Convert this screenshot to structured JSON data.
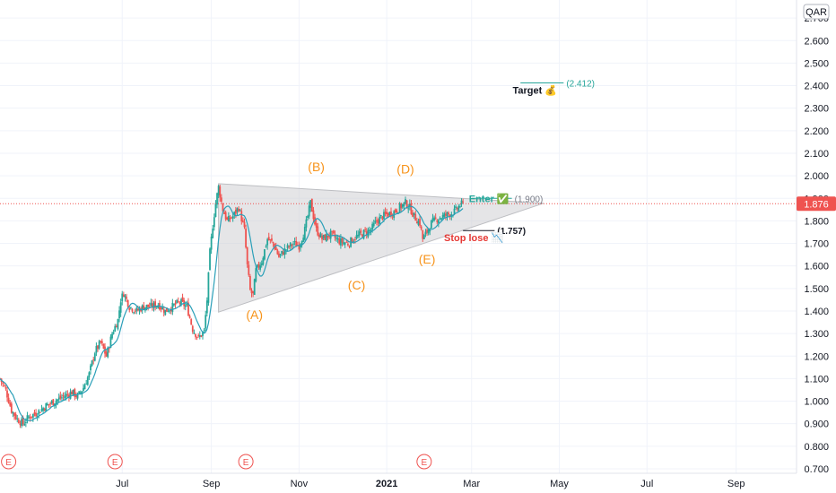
{
  "chart_data": {
    "type": "candlestick",
    "currency": "QAR",
    "last_price_label": "1.876",
    "colors": {
      "up": "#26a69a",
      "down": "#ef5350",
      "ma": "#2a9fb8",
      "pattern": "#cfd0d4",
      "wave_label": "#f7931a",
      "target": "#26a69a",
      "stop": "#e53935"
    },
    "y_ticks": [
      "0.700",
      "0.800",
      "0.900",
      "1.000",
      "1.100",
      "1.200",
      "1.300",
      "1.400",
      "1.500",
      "1.600",
      "1.700",
      "1.800",
      "1.900",
      "2.000",
      "2.100",
      "2.200",
      "2.300",
      "2.400",
      "2.500",
      "2.600",
      "2.700"
    ],
    "y_range": [
      0.68,
      2.78
    ],
    "x_ticks": [
      {
        "label": "Jul",
        "day": 85
      },
      {
        "label": "Sep",
        "day": 147
      },
      {
        "label": "Nov",
        "day": 208
      },
      {
        "label": "2021",
        "day": 269
      },
      {
        "label": "Mar",
        "day": 328
      },
      {
        "label": "May",
        "day": 389
      },
      {
        "label": "Jul",
        "day": 450
      },
      {
        "label": "Sep",
        "day": 512
      }
    ],
    "x_range": [
      0,
      554
    ],
    "earnings_days": [
      6,
      80,
      171,
      295
    ],
    "earnings_symbol": "E",
    "closes_knots": [
      [
        0,
        1.1
      ],
      [
        4,
        1.05
      ],
      [
        8,
        0.96
      ],
      [
        12,
        0.92
      ],
      [
        16,
        0.9
      ],
      [
        20,
        0.93
      ],
      [
        26,
        0.95
      ],
      [
        32,
        0.98
      ],
      [
        38,
        1.0
      ],
      [
        44,
        1.02
      ],
      [
        50,
        1.04
      ],
      [
        54,
        1.02
      ],
      [
        58,
        1.06
      ],
      [
        62,
        1.12
      ],
      [
        66,
        1.22
      ],
      [
        70,
        1.26
      ],
      [
        74,
        1.2
      ],
      [
        78,
        1.3
      ],
      [
        82,
        1.36
      ],
      [
        84,
        1.45
      ],
      [
        86,
        1.48
      ],
      [
        90,
        1.42
      ],
      [
        95,
        1.4
      ],
      [
        100,
        1.42
      ],
      [
        105,
        1.42
      ],
      [
        110,
        1.43
      ],
      [
        115,
        1.4
      ],
      [
        120,
        1.42
      ],
      [
        125,
        1.44
      ],
      [
        130,
        1.42
      ],
      [
        134,
        1.32
      ],
      [
        138,
        1.28
      ],
      [
        142,
        1.31
      ],
      [
        144,
        1.45
      ],
      [
        146,
        1.66
      ],
      [
        148,
        1.78
      ],
      [
        150,
        1.88
      ],
      [
        152,
        1.95
      ],
      [
        155,
        1.85
      ],
      [
        158,
        1.8
      ],
      [
        162,
        1.82
      ],
      [
        166,
        1.86
      ],
      [
        170,
        1.76
      ],
      [
        172,
        1.6
      ],
      [
        174,
        1.49
      ],
      [
        176,
        1.47
      ],
      [
        178,
        1.58
      ],
      [
        182,
        1.62
      ],
      [
        186,
        1.72
      ],
      [
        190,
        1.7
      ],
      [
        194,
        1.64
      ],
      [
        198,
        1.67
      ],
      [
        204,
        1.7
      ],
      [
        208,
        1.69
      ],
      [
        212,
        1.76
      ],
      [
        216,
        1.88
      ],
      [
        220,
        1.76
      ],
      [
        224,
        1.72
      ],
      [
        230,
        1.74
      ],
      [
        236,
        1.71
      ],
      [
        242,
        1.7
      ],
      [
        248,
        1.73
      ],
      [
        254,
        1.75
      ],
      [
        258,
        1.76
      ],
      [
        262,
        1.8
      ],
      [
        266,
        1.82
      ],
      [
        270,
        1.83
      ],
      [
        274,
        1.84
      ],
      [
        278,
        1.86
      ],
      [
        282,
        1.88
      ],
      [
        285,
        1.86
      ],
      [
        288,
        1.82
      ],
      [
        292,
        1.79
      ],
      [
        294,
        1.72
      ],
      [
        296,
        1.74
      ],
      [
        300,
        1.79
      ],
      [
        304,
        1.81
      ],
      [
        308,
        1.82
      ],
      [
        312,
        1.83
      ],
      [
        316,
        1.84
      ],
      [
        320,
        1.87
      ],
      [
        322,
        1.876
      ]
    ],
    "pattern_triangle": [
      {
        "day": 152,
        "value": 1.965
      },
      {
        "day": 152,
        "value": 1.395
      },
      {
        "day": 378,
        "value": 1.878
      }
    ],
    "wave_labels": [
      {
        "text": "(A)",
        "day": 177,
        "value": 1.365
      },
      {
        "text": "(B)",
        "day": 220,
        "value": 2.02
      },
      {
        "text": "(C)",
        "day": 248,
        "value": 1.495
      },
      {
        "text": "(D)",
        "day": 282,
        "value": 2.01
      },
      {
        "text": "(E)",
        "day": 297,
        "value": 1.61
      }
    ],
    "levels": [
      {
        "name": "target",
        "label": "Target 💰",
        "value_label": "(2.412)",
        "value": 2.412,
        "day_start": 362,
        "day_end": 392
      },
      {
        "name": "enter",
        "label": "Enter ✅",
        "value_label": "(1.900)",
        "value": 1.9,
        "day_start": 328,
        "day_end": 356
      },
      {
        "name": "stop",
        "label": "Stop lose 📉",
        "value_label": "(1.757)",
        "value": 1.757,
        "day_start": 322,
        "day_end": 344
      }
    ]
  }
}
